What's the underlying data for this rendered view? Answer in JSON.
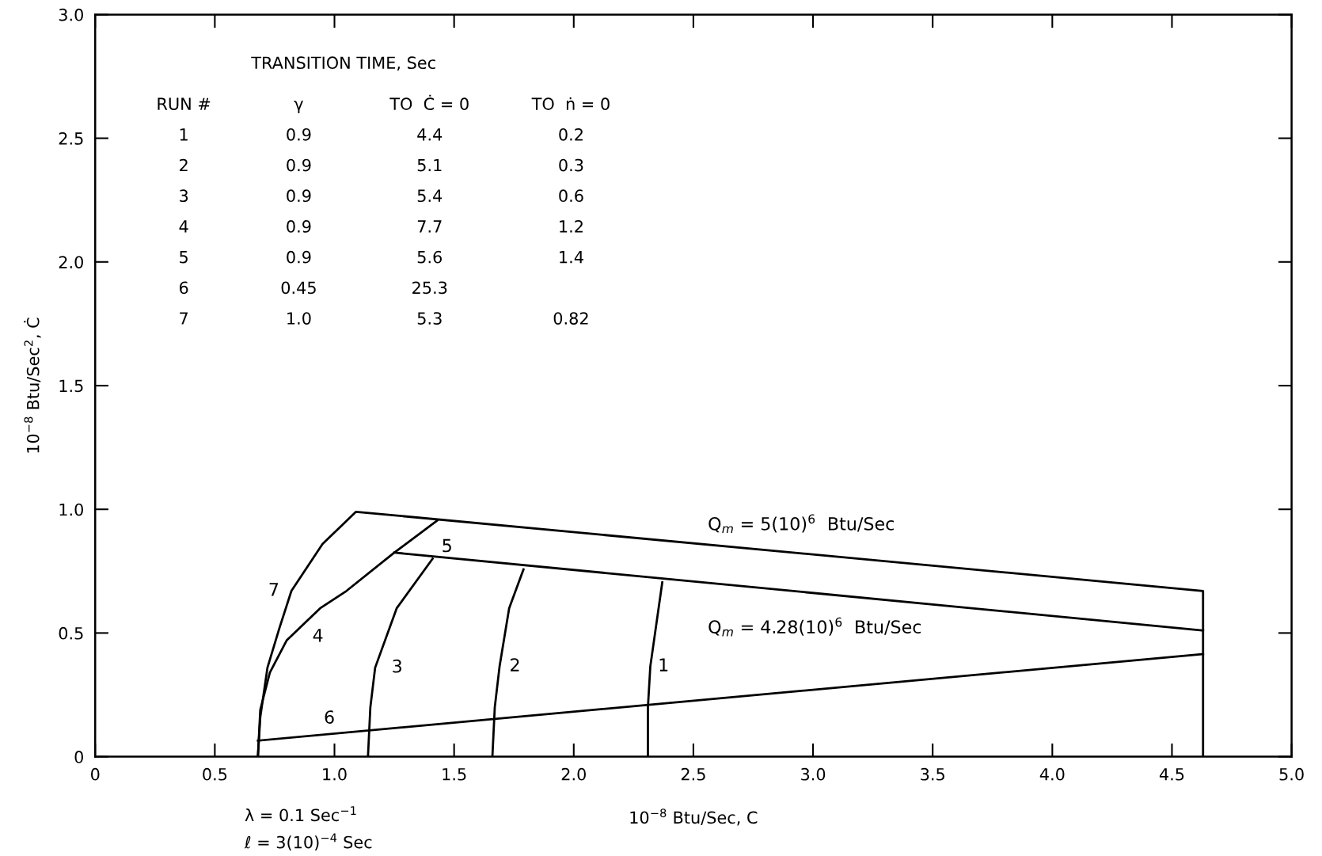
{
  "chart_data": {
    "type": "line",
    "xlabel": "10$^{−8}$ Btu/Sec, C",
    "ylabel": "10$^{−8}$ Btu/Sec$^{2}$, Ċ",
    "xlim": [
      0,
      5.0
    ],
    "ylim": [
      0,
      3.0
    ],
    "xticks": [
      0,
      {
        "value": 0.5,
        "label": "0.5"
      },
      {
        "value": 1.0,
        "label": "1.0"
      },
      {
        "value": 1.5,
        "label": "1.5"
      },
      {
        "value": 2.0,
        "label": "2.0"
      },
      {
        "value": 2.5,
        "label": "2.5"
      },
      {
        "value": 3.0,
        "label": "3.0"
      },
      {
        "value": 3.5,
        "label": "3.5"
      },
      {
        "value": 4.0,
        "label": "4.0"
      },
      {
        "value": 4.5,
        "label": "4.5"
      },
      {
        "value": 5.0,
        "label": "5.0"
      }
    ],
    "yticks": [
      0,
      {
        "value": 0.5,
        "label": "0.5"
      },
      {
        "value": 1.0,
        "label": "1.0"
      },
      {
        "value": 1.5,
        "label": "1.5"
      },
      {
        "value": 2.0,
        "label": "2.0"
      },
      {
        "value": 2.5,
        "label": "2.5"
      },
      {
        "value": 3.0,
        "label": "3.0"
      }
    ],
    "grid": false,
    "legend": false,
    "marker": "none",
    "line_style": "solid",
    "series": [
      {
        "name": "7",
        "color": "#000000",
        "x": [
          0.68,
          0.69,
          0.72,
          0.77,
          0.82,
          0.95,
          1.09,
          4.63,
          4.63
        ],
        "values": [
          0,
          0.16,
          0.36,
          0.52,
          0.67,
          0.86,
          0.99,
          0.67,
          0
        ]
      },
      {
        "name": "4",
        "color": "#000000",
        "x": [
          0.68,
          0.69,
          0.73,
          0.8,
          0.94,
          1.05,
          1.25,
          1.43
        ],
        "values": [
          0,
          0.19,
          0.34,
          0.47,
          0.6,
          0.67,
          0.825,
          0.955
        ]
      },
      {
        "name": "5",
        "color": "#000000",
        "x": [
          1.25,
          4.63
        ],
        "values": [
          0.825,
          0.51
        ]
      },
      {
        "name": "3",
        "color": "#000000",
        "x": [
          1.14,
          1.15,
          1.17,
          1.26,
          1.41
        ],
        "values": [
          0,
          0.2,
          0.36,
          0.6,
          0.8
        ]
      },
      {
        "name": "2",
        "color": "#000000",
        "x": [
          1.66,
          1.67,
          1.69,
          1.73,
          1.79
        ],
        "values": [
          0,
          0.2,
          0.365,
          0.6,
          0.757
        ]
      },
      {
        "name": "1",
        "color": "#000000",
        "x": [
          2.31,
          2.31,
          2.32,
          2.37
        ],
        "values": [
          0,
          0.2,
          0.365,
          0.705
        ]
      },
      {
        "name": "6",
        "color": "#000000",
        "x": [
          0.68,
          4.63
        ],
        "values": [
          0.065,
          0.415
        ]
      }
    ],
    "annotations": [
      "Q$_{m}$ = 5(10)$^{6}$  Btu/Sec",
      "Q$_{m}$ = 4.28(10)$^{6}$  Btu/Sec",
      "λ = 0.1 Sec$^{−1}$",
      "ℓ = 3(10)$^{−4}$ Sec",
      "TRANSITION TIME, Sec",
      "RUN #",
      "γ",
      "TO  Ċ = 0",
      "TO  ṅ = 0",
      "1",
      "0.9",
      "4.4",
      "0.2",
      "2",
      "0.9",
      "5.1",
      "0.3",
      "3",
      "0.9",
      "5.4",
      "0.6",
      "4",
      "0.9",
      "7.7",
      "1.2",
      "5",
      "0.9",
      "5.6",
      "1.4",
      "6",
      "0.45",
      "25.3",
      null,
      "7",
      "1.0",
      "5.3",
      "0.82"
    ]
  }
}
